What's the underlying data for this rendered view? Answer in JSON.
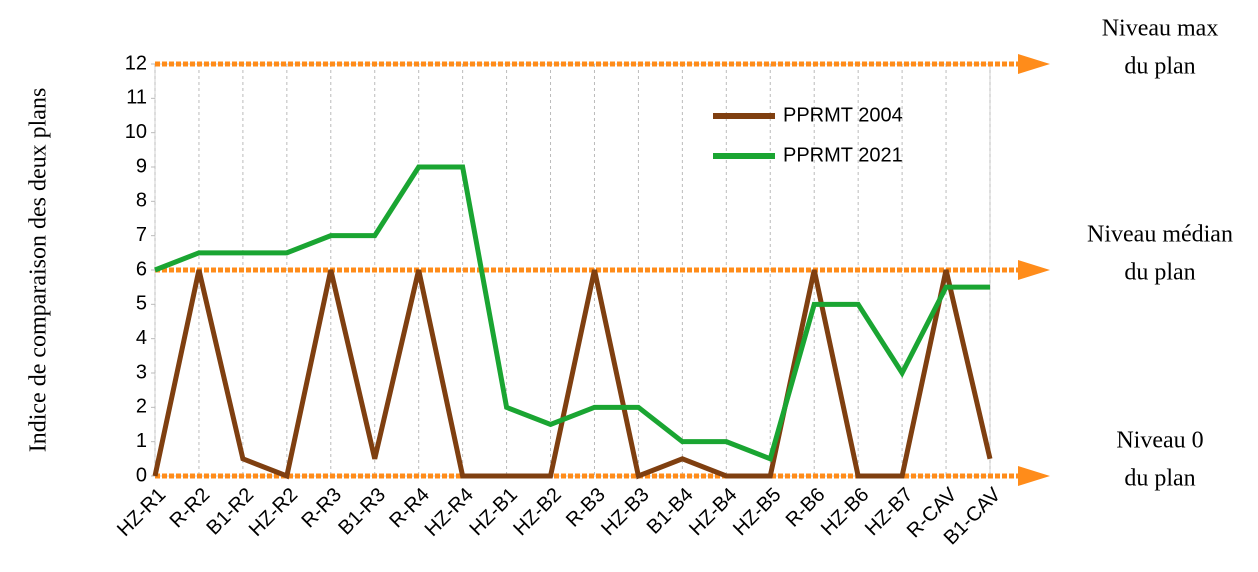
{
  "chart_data": {
    "type": "line",
    "y_label": "Indice de comparaison des deux plans",
    "categories": [
      "HZ-R1",
      "R-R2",
      "B1-R2",
      "HZ-R2",
      "R-R3",
      "B1-R3",
      "R-R4",
      "HZ-R4",
      "HZ-B1",
      "HZ-B2",
      "R-B3",
      "HZ-B3",
      "B1-B4",
      "HZ-B4",
      "HZ-B5",
      "R-B6",
      "HZ-B6",
      "HZ-B7",
      "R-CAV",
      "B1-CAV"
    ],
    "series": [
      {
        "name": "PPRMT 2004",
        "color": "#7f3f10",
        "values": [
          0,
          6,
          0.5,
          0,
          6,
          0.5,
          6,
          0,
          0,
          0,
          6,
          0,
          0.5,
          0,
          0,
          6,
          0,
          0,
          6,
          0.5
        ]
      },
      {
        "name": "PPRMT 2021",
        "color": "#1aa532",
        "values": [
          6,
          6.5,
          6.5,
          6.5,
          7,
          7,
          9,
          9,
          2,
          1.5,
          2,
          2,
          1,
          1,
          0.5,
          5,
          5,
          3,
          5.5,
          5.5
        ]
      }
    ],
    "ylim": [
      0,
      12
    ],
    "yticks": [
      0,
      1,
      2,
      3,
      4,
      5,
      6,
      7,
      8,
      9,
      10,
      11,
      12
    ],
    "grid": "vertical",
    "reference_color": "#ff8c1a",
    "reference_lines": [
      {
        "value": 12,
        "label": [
          "Niveau max",
          "du plan"
        ]
      },
      {
        "value": 6,
        "label": [
          "Niveau médian",
          "du plan"
        ]
      },
      {
        "value": 0,
        "label": [
          "Niveau 0",
          "du plan"
        ]
      }
    ]
  }
}
